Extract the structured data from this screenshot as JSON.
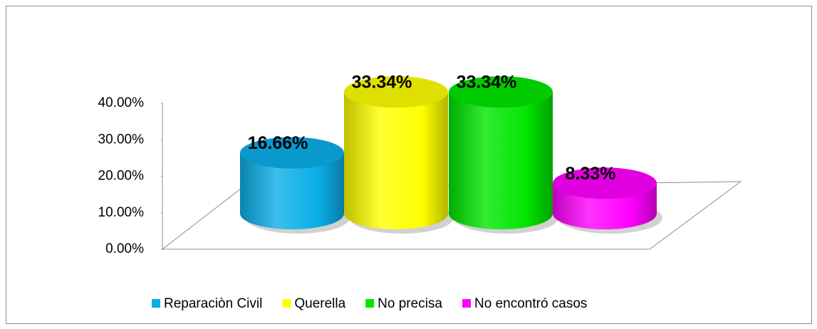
{
  "chart_data": {
    "type": "bar3d",
    "series": [
      {
        "name": "Reparaciòn Civil",
        "color": "#0aaee8",
        "values": [
          16.66
        ],
        "value_labels": [
          "16.66%"
        ]
      },
      {
        "name": "Querella",
        "color": "#ffff00",
        "values": [
          33.34
        ],
        "value_labels": [
          "33.34%"
        ]
      },
      {
        "name": "No precisa",
        "color": "#00e600",
        "values": [
          33.34
        ],
        "value_labels": [
          "33.34%"
        ]
      },
      {
        "name": "No encontró casos",
        "color": "#ff00ff",
        "values": [
          8.33
        ],
        "value_labels": [
          "8.33%"
        ]
      }
    ],
    "ylim": [
      0,
      40
    ],
    "yticks": [
      {
        "value": 0,
        "label": "0.00%"
      },
      {
        "value": 10,
        "label": "10.00%"
      },
      {
        "value": 20,
        "label": "20.00%"
      },
      {
        "value": 30,
        "label": "30.00%"
      },
      {
        "value": 40,
        "label": "40.00%"
      }
    ],
    "legend": "bottom"
  }
}
